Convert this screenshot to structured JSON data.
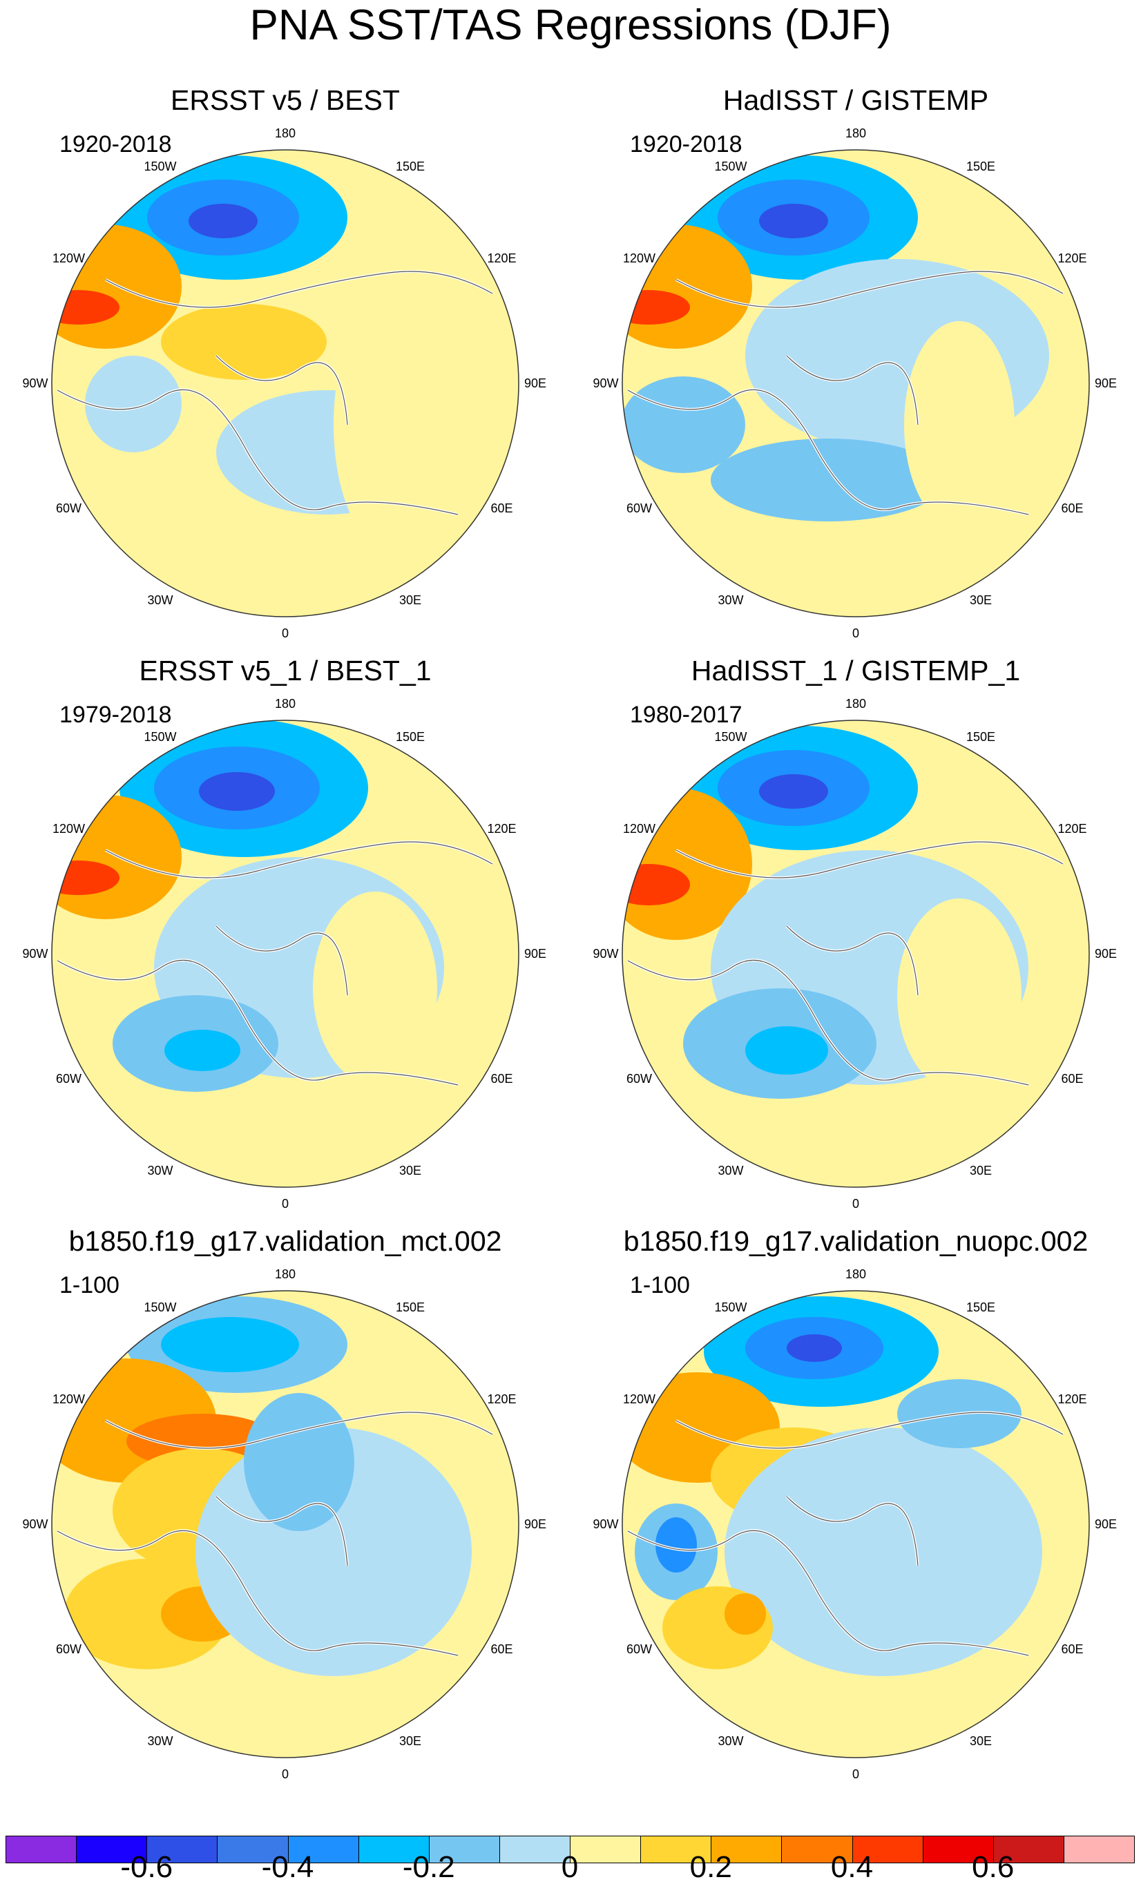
{
  "title": "PNA SST/TAS Regressions (DJF)",
  "lon_labels": {
    "n180": "180",
    "w150": "150W",
    "e150": "150E",
    "w120": "120W",
    "e120": "120E",
    "w90": "90W",
    "e90": "90E",
    "w60": "60W",
    "e60": "60E",
    "w30": "30W",
    "e30": "30E",
    "s0": "0"
  },
  "panels": [
    {
      "title": "ERSST v5 / BEST",
      "period": "1920-2018"
    },
    {
      "title": "HadISST / GISTEMP",
      "period": "1920-2018"
    },
    {
      "title": "ERSST v5_1 / BEST_1",
      "period": "1979-2018"
    },
    {
      "title": "HadISST_1 / GISTEMP_1",
      "period": "1980-2017"
    },
    {
      "title": "b1850.f19_g17.validation_mct.002",
      "period": "1-100"
    },
    {
      "title": "b1850.f19_g17.validation_nuopc.002",
      "period": "1-100"
    }
  ],
  "colorbar": {
    "colors": [
      "#8a2be2",
      "#1a00ff",
      "#2e50e6",
      "#3a7ae8",
      "#1e90ff",
      "#00bfff",
      "#76c6f2",
      "#b3dff5",
      "#fff59e",
      "#ffd633",
      "#ffaa00",
      "#ff7a00",
      "#ff3a00",
      "#ee0000",
      "#cc1a1a",
      "#ffb3b3"
    ],
    "ticks": [
      "-0.6",
      "-0.4",
      "-0.2",
      "0",
      "0.2",
      "0.4",
      "0.6"
    ]
  }
}
